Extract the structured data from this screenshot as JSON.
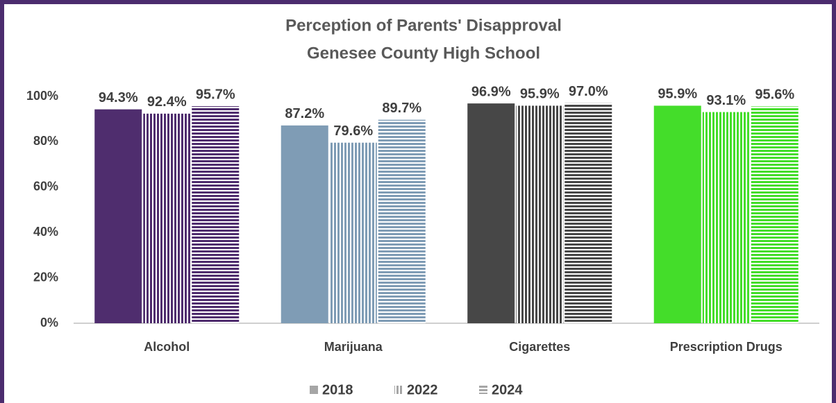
{
  "chart_data": {
    "type": "bar",
    "title": "Perception of Parents' Disapproval",
    "subtitle": "Genesee County High School",
    "categories": [
      "Alcohol",
      "Marijuana",
      "Cigarettes",
      "Prescription Drugs"
    ],
    "category_colors": [
      "#4f2d6e",
      "#7f9cb5",
      "#474747",
      "#44dd2a"
    ],
    "series": [
      {
        "name": "2018",
        "color": "#a6a6a6",
        "pattern": "solid",
        "values": [
          94.3,
          87.2,
          96.9,
          95.9
        ],
        "value_labels": [
          "94.3%",
          "87.2%",
          "96.9%",
          "95.9%"
        ]
      },
      {
        "name": "2022",
        "color": "#a6a6a6",
        "pattern": "vertical",
        "values": [
          92.4,
          79.6,
          95.9,
          93.1
        ],
        "value_labels": [
          "92.4%",
          "79.6%",
          "95.9%",
          "93.1%"
        ]
      },
      {
        "name": "2024",
        "color": "#a6a6a6",
        "pattern": "horizontal",
        "values": [
          95.7,
          89.7,
          97.0,
          95.6
        ],
        "value_labels": [
          "95.7%",
          "89.7%",
          "97.0%",
          "95.6%"
        ]
      }
    ],
    "ylim": [
      0,
      100
    ],
    "yticks": [
      {
        "value": 0,
        "label": "0%"
      },
      {
        "value": 20,
        "label": "20%"
      },
      {
        "value": 40,
        "label": "40%"
      },
      {
        "value": 60,
        "label": "60%"
      },
      {
        "value": 80,
        "label": "80%"
      },
      {
        "value": 100,
        "label": "100%"
      }
    ],
    "legend": "bottom"
  }
}
